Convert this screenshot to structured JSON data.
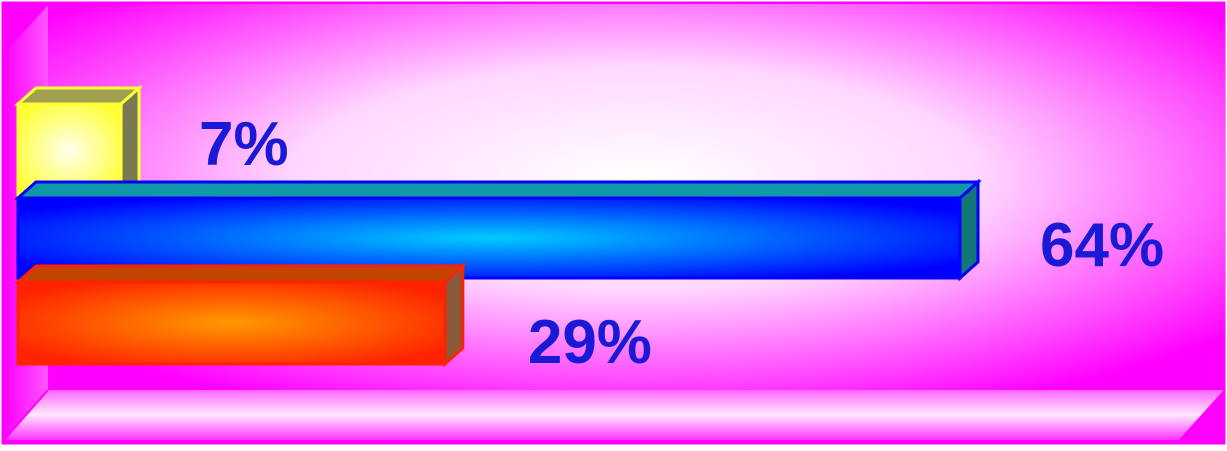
{
  "chart_data": {
    "type": "bar",
    "orientation": "horizontal",
    "style": "3d",
    "categories": [
      "",
      "",
      ""
    ],
    "series": [
      {
        "values": [
          7,
          64,
          29
        ]
      }
    ],
    "value_labels": [
      "7%",
      "64%",
      "29%"
    ],
    "unit": "%",
    "xlim": [
      0,
      100
    ],
    "grid": false,
    "legend": "none",
    "title": "",
    "xlabel": "",
    "ylabel": ""
  },
  "colors": {
    "background_frame": "#ff00ff",
    "bar_1": "#ffff33",
    "bar_2": "#0000ff",
    "bar_2_highlight": "#00ccff",
    "bar_3": "#ff2200",
    "bar_3_highlight": "#ff9900",
    "label_text": "#1a1ad6"
  }
}
